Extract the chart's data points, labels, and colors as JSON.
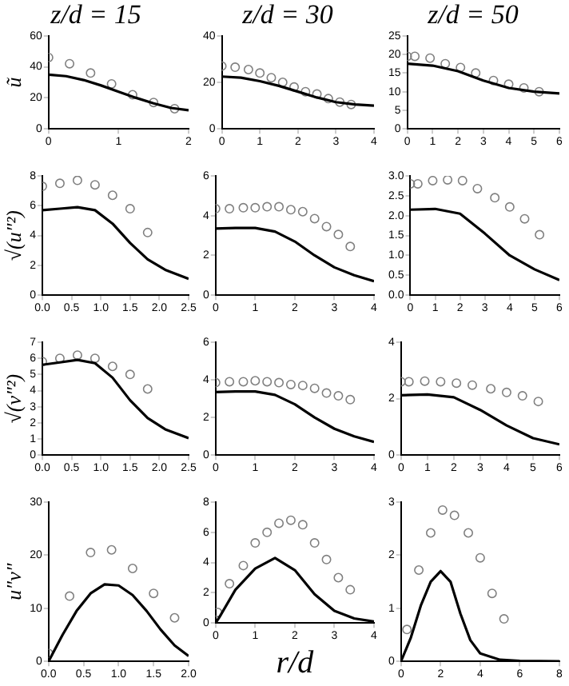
{
  "chart_data": [
    {
      "type": "line",
      "title": "z/d = 15",
      "ylabel": "ũ",
      "xlim": [
        0,
        2
      ],
      "xticks": [
        0,
        1,
        2
      ],
      "ylim": [
        0,
        60
      ],
      "yticks": [
        0,
        20,
        40,
        60
      ],
      "series": [
        {
          "type": "line",
          "color": "#000000",
          "marker": "none",
          "x": [
            0,
            0.25,
            0.5,
            0.75,
            1,
            1.25,
            1.5,
            1.75,
            2
          ],
          "values": [
            35,
            34,
            31.5,
            28,
            24,
            20,
            16.5,
            13.5,
            12
          ]
        },
        {
          "type": "scatter",
          "color": "#808080",
          "marker": "circle",
          "x": [
            0,
            0.3,
            0.6,
            0.9,
            1.2,
            1.5,
            1.8
          ],
          "values": [
            46,
            42,
            36,
            29,
            22,
            17,
            13
          ]
        }
      ]
    },
    {
      "type": "line",
      "title": "z/d = 30",
      "xlim": [
        0,
        4
      ],
      "xticks": [
        0,
        1,
        2,
        3,
        4
      ],
      "ylim": [
        0,
        40
      ],
      "yticks": [
        0,
        20,
        40
      ],
      "series": [
        {
          "type": "line",
          "color": "#000000",
          "marker": "none",
          "x": [
            0,
            0.5,
            1,
            1.5,
            2,
            2.5,
            3,
            3.5,
            4
          ],
          "values": [
            22.5,
            22,
            20.5,
            18.5,
            16,
            13.5,
            11.5,
            10.5,
            10
          ]
        },
        {
          "type": "scatter",
          "color": "#808080",
          "marker": "circle",
          "x": [
            0,
            0.35,
            0.7,
            1,
            1.3,
            1.6,
            1.9,
            2.2,
            2.5,
            2.8,
            3.1,
            3.4
          ],
          "values": [
            27,
            26.5,
            25.5,
            24,
            22,
            20,
            18,
            16,
            15,
            13,
            11.5,
            10.5
          ]
        }
      ]
    },
    {
      "type": "line",
      "title": "z/d = 50",
      "xlim": [
        0,
        6
      ],
      "xticks": [
        0,
        1,
        2,
        3,
        4,
        5,
        6
      ],
      "ylim": [
        0,
        25
      ],
      "yticks": [
        0,
        5,
        10,
        15,
        20,
        25
      ],
      "series": [
        {
          "type": "line",
          "color": "#000000",
          "marker": "none",
          "x": [
            0,
            1,
            2,
            3,
            4,
            5,
            6
          ],
          "values": [
            17.5,
            17,
            15.5,
            13,
            11,
            10,
            9.5
          ]
        },
        {
          "type": "scatter",
          "color": "#808080",
          "marker": "circle",
          "x": [
            0,
            0.3,
            0.9,
            1.5,
            2.1,
            2.7,
            3.4,
            4,
            4.6,
            5.2
          ],
          "values": [
            19.5,
            19.5,
            19,
            17.5,
            16.5,
            15,
            13,
            12,
            11,
            10
          ]
        }
      ]
    },
    {
      "type": "line",
      "ylabel": "√(u″²)",
      "xlim": [
        0,
        2.5
      ],
      "xticks": [
        {
          "value": 0,
          "label": "0.0"
        },
        {
          "value": 0.5,
          "label": "0.5"
        },
        {
          "value": 1,
          "label": "1.0"
        },
        {
          "value": 1.5,
          "label": "1.5"
        },
        {
          "value": 2,
          "label": "2.0"
        },
        {
          "value": 2.5,
          "label": "2.5"
        }
      ],
      "ylim": [
        0,
        8
      ],
      "yticks": [
        0,
        2,
        4,
        6,
        8
      ],
      "series": [
        {
          "type": "line",
          "color": "#000000",
          "marker": "none",
          "x": [
            0,
            0.3,
            0.6,
            0.9,
            1.2,
            1.5,
            1.8,
            2.1,
            2.5
          ],
          "values": [
            5.7,
            5.8,
            5.9,
            5.7,
            4.8,
            3.5,
            2.4,
            1.7,
            1.1
          ]
        },
        {
          "type": "scatter",
          "color": "#808080",
          "marker": "circle",
          "x": [
            0,
            0.3,
            0.6,
            0.9,
            1.2,
            1.5,
            1.8
          ],
          "values": [
            7.3,
            7.5,
            7.7,
            7.4,
            6.7,
            5.8,
            4.2
          ]
        }
      ]
    },
    {
      "type": "line",
      "xlim": [
        0,
        4
      ],
      "xticks": [
        0,
        1,
        2,
        3,
        4
      ],
      "ylim": [
        0,
        6
      ],
      "yticks": [
        0,
        2,
        4,
        6
      ],
      "series": [
        {
          "type": "line",
          "color": "#000000",
          "marker": "none",
          "x": [
            0,
            0.5,
            1,
            1.5,
            2,
            2.5,
            3,
            3.5,
            4
          ],
          "values": [
            3.35,
            3.38,
            3.38,
            3.2,
            2.7,
            2,
            1.4,
            1,
            0.7
          ]
        },
        {
          "type": "scatter",
          "color": "#808080",
          "marker": "circle",
          "x": [
            0,
            0.35,
            0.7,
            1,
            1.3,
            1.6,
            1.9,
            2.2,
            2.5,
            2.8,
            3.1,
            3.4
          ],
          "values": [
            4.35,
            4.35,
            4.4,
            4.4,
            4.45,
            4.45,
            4.3,
            4.2,
            3.85,
            3.45,
            3.05,
            2.45
          ]
        }
      ]
    },
    {
      "type": "line",
      "xlim": [
        0,
        6
      ],
      "xticks": [
        0,
        1,
        2,
        3,
        4,
        5,
        6
      ],
      "ylim": [
        0,
        3
      ],
      "yticks": [
        {
          "value": 0,
          "label": "0.0"
        },
        {
          "value": 0.5,
          "label": "0.5"
        },
        {
          "value": 1,
          "label": "1.0"
        },
        {
          "value": 1.5,
          "label": "1.5"
        },
        {
          "value": 2,
          "label": "2.0"
        },
        {
          "value": 2.5,
          "label": "2.5"
        },
        {
          "value": 3,
          "label": "3.0"
        }
      ],
      "series": [
        {
          "type": "line",
          "color": "#000000",
          "marker": "none",
          "x": [
            0,
            1,
            2,
            3,
            4,
            5,
            6
          ],
          "values": [
            2.15,
            2.17,
            2.05,
            1.55,
            1,
            0.65,
            0.38
          ]
        },
        {
          "type": "scatter",
          "color": "#808080",
          "marker": "circle",
          "x": [
            0,
            0.3,
            0.9,
            1.5,
            2.1,
            2.7,
            3.4,
            4,
            4.6,
            5.2
          ],
          "values": [
            2.8,
            2.8,
            2.88,
            2.9,
            2.88,
            2.68,
            2.45,
            2.22,
            1.92,
            1.52
          ]
        }
      ]
    },
    {
      "type": "line",
      "ylabel": "√(v″²)",
      "xlim": [
        0,
        2.5
      ],
      "xticks": [
        {
          "value": 0,
          "label": "0.0"
        },
        {
          "value": 0.5,
          "label": "0.5"
        },
        {
          "value": 1,
          "label": "1.0"
        },
        {
          "value": 1.5,
          "label": "1.5"
        },
        {
          "value": 2,
          "label": "2.0"
        },
        {
          "value": 2.5,
          "label": "2.5"
        }
      ],
      "ylim": [
        0,
        7
      ],
      "yticks": [
        0,
        1,
        2,
        3,
        4,
        5,
        6,
        7
      ],
      "series": [
        {
          "type": "line",
          "color": "#000000",
          "marker": "none",
          "x": [
            0,
            0.3,
            0.6,
            0.9,
            1.2,
            1.5,
            1.8,
            2.1,
            2.5
          ],
          "values": [
            5.6,
            5.75,
            5.9,
            5.7,
            4.8,
            3.4,
            2.3,
            1.6,
            1.05
          ]
        },
        {
          "type": "scatter",
          "color": "#808080",
          "marker": "circle",
          "x": [
            0,
            0.3,
            0.6,
            0.9,
            1.2,
            1.5,
            1.8
          ],
          "values": [
            5.8,
            6,
            6.2,
            6,
            5.5,
            5,
            4.1
          ]
        }
      ]
    },
    {
      "type": "line",
      "xlim": [
        0,
        4
      ],
      "xticks": [
        0,
        1,
        2,
        3,
        4
      ],
      "ylim": [
        0,
        6
      ],
      "yticks": [
        0,
        2,
        4,
        6
      ],
      "series": [
        {
          "type": "line",
          "color": "#000000",
          "marker": "none",
          "x": [
            0,
            0.5,
            1,
            1.5,
            2,
            2.5,
            3,
            3.5,
            4
          ],
          "values": [
            3.35,
            3.38,
            3.38,
            3.2,
            2.7,
            2,
            1.4,
            1,
            0.7
          ]
        },
        {
          "type": "scatter",
          "color": "#808080",
          "marker": "circle",
          "x": [
            0,
            0.35,
            0.7,
            1,
            1.3,
            1.6,
            1.9,
            2.2,
            2.5,
            2.8,
            3.1,
            3.4
          ],
          "values": [
            3.85,
            3.9,
            3.9,
            3.95,
            3.9,
            3.85,
            3.75,
            3.7,
            3.55,
            3.3,
            3.15,
            2.95
          ]
        }
      ]
    },
    {
      "type": "line",
      "xlim": [
        0,
        6
      ],
      "xticks": [
        0,
        1,
        2,
        3,
        4,
        5,
        6
      ],
      "ylim": [
        0,
        4
      ],
      "yticks": [
        0,
        2,
        4
      ],
      "series": [
        {
          "type": "line",
          "color": "#000000",
          "marker": "none",
          "x": [
            0,
            1,
            2,
            3,
            4,
            5,
            6
          ],
          "values": [
            2.12,
            2.15,
            2.05,
            1.6,
            1.05,
            0.6,
            0.38
          ]
        },
        {
          "type": "scatter",
          "color": "#808080",
          "marker": "circle",
          "x": [
            0,
            0.3,
            0.9,
            1.5,
            2.1,
            2.7,
            3.4,
            4,
            4.6,
            5.2
          ],
          "values": [
            2.6,
            2.6,
            2.62,
            2.6,
            2.55,
            2.48,
            2.35,
            2.22,
            2.1,
            1.9
          ]
        }
      ]
    },
    {
      "type": "line",
      "ylabel": "u″v″",
      "xlim": [
        0,
        2
      ],
      "xticks": [
        {
          "value": 0,
          "label": "0.0"
        },
        {
          "value": 0.5,
          "label": "0.5"
        },
        {
          "value": 1,
          "label": "1.0"
        },
        {
          "value": 1.5,
          "label": "1.5"
        },
        {
          "value": 2,
          "label": "2.0"
        }
      ],
      "ylim": [
        0,
        30
      ],
      "yticks": [
        0,
        10,
        20,
        30
      ],
      "series": [
        {
          "type": "line",
          "color": "#000000",
          "marker": "none",
          "x": [
            0,
            0.2,
            0.4,
            0.6,
            0.8,
            1,
            1.2,
            1.4,
            1.6,
            1.8,
            2
          ],
          "values": [
            0,
            5,
            9.5,
            12.8,
            14.5,
            14.3,
            12.5,
            9.5,
            6,
            3,
            1
          ]
        },
        {
          "type": "scatter",
          "color": "#808080",
          "marker": "circle",
          "x": [
            0,
            0.3,
            0.6,
            0.9,
            1.2,
            1.5,
            1.8
          ],
          "values": [
            1.5,
            12.3,
            20.5,
            21,
            17.5,
            12.8,
            8.2
          ]
        }
      ]
    },
    {
      "type": "line",
      "xlabel": "r/d",
      "xlim": [
        0,
        4
      ],
      "xticks": [
        0,
        1,
        2,
        3,
        4
      ],
      "ylim": [
        0,
        8
      ],
      "yticks": [
        0,
        2,
        4,
        6,
        8
      ],
      "series": [
        {
          "type": "line",
          "color": "#000000",
          "marker": "none",
          "x": [
            0,
            0.1,
            0.5,
            1,
            1.5,
            2,
            2.5,
            3,
            3.5,
            4
          ],
          "values": [
            0,
            0.4,
            2.2,
            3.6,
            4.3,
            3.5,
            1.9,
            0.8,
            0.3,
            0.1
          ]
        },
        {
          "type": "scatter",
          "color": "#808080",
          "marker": "circle",
          "x": [
            0.05,
            0.35,
            0.7,
            1,
            1.3,
            1.6,
            1.9,
            2.2,
            2.5,
            2.8,
            3.1,
            3.4
          ],
          "values": [
            0.7,
            2.6,
            3.8,
            5.3,
            6,
            6.6,
            6.8,
            6.5,
            5.3,
            4.2,
            3,
            2.2
          ]
        }
      ]
    },
    {
      "type": "line",
      "xlim": [
        0,
        8
      ],
      "xticks": [
        0,
        2,
        4,
        6,
        8
      ],
      "ylim": [
        0,
        3
      ],
      "yticks": [
        0,
        1,
        2,
        3
      ],
      "series": [
        {
          "type": "line",
          "color": "#000000",
          "marker": "none",
          "x": [
            0,
            0.5,
            1,
            1.5,
            2,
            2.5,
            3,
            3.5,
            4,
            5,
            6,
            8
          ],
          "values": [
            0,
            0.45,
            1.05,
            1.5,
            1.7,
            1.5,
            0.9,
            0.4,
            0.15,
            0.03,
            0.01,
            0
          ]
        },
        {
          "type": "scatter",
          "color": "#808080",
          "marker": "circle",
          "x": [
            0.3,
            0.9,
            1.5,
            2.1,
            2.7,
            3.4,
            4,
            4.6,
            5.2
          ],
          "values": [
            0.6,
            1.72,
            2.42,
            2.85,
            2.75,
            2.42,
            1.95,
            1.28,
            0.8
          ]
        }
      ]
    }
  ]
}
